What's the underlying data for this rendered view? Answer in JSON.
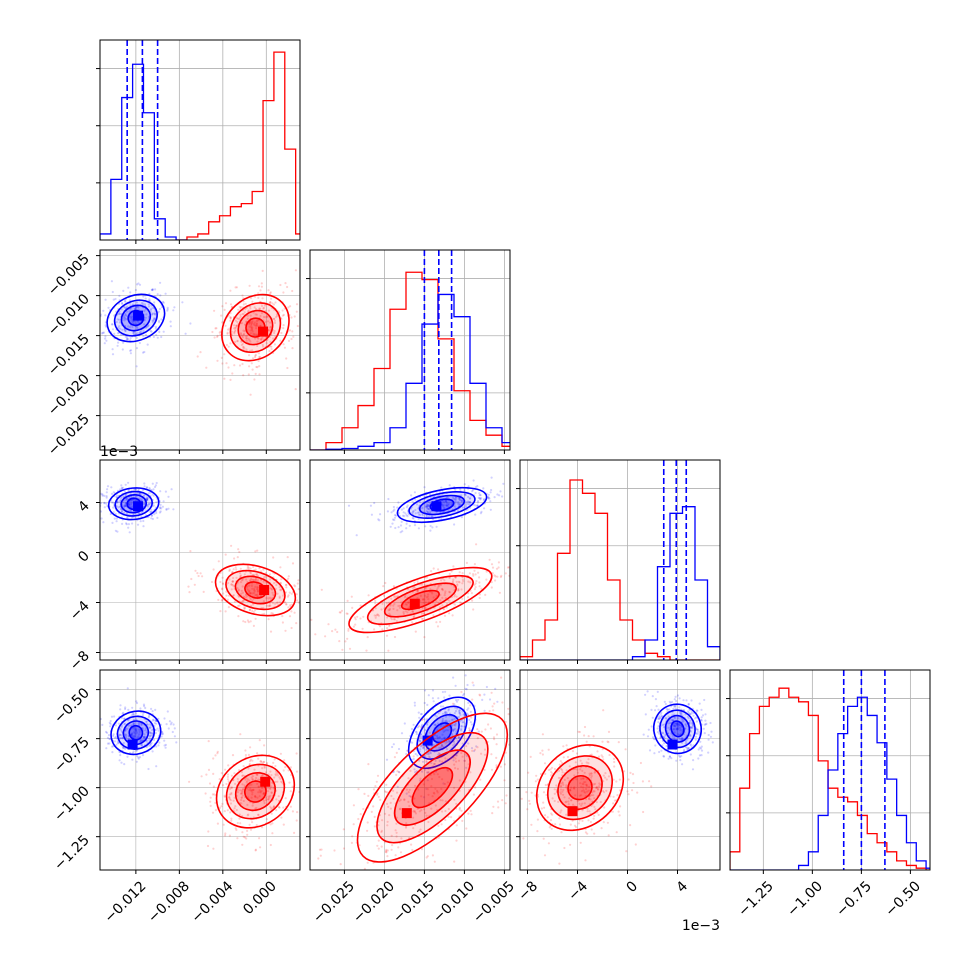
{
  "figure": {
    "type": "corner_plot",
    "description_colors": {
      "blue": "#0000ff",
      "red": "#ff0000",
      "grid": "#b0b0b0"
    }
  },
  "chart_data": {
    "type": "corner",
    "n_params": 4,
    "series": [
      {
        "color": "#0000ff",
        "quantile_lines": true
      },
      {
        "color": "#ff0000",
        "quantile_lines": false
      }
    ],
    "axes": [
      {
        "index": 0,
        "range": [
          -0.0153,
          0.0031
        ],
        "ticks": [
          -0.012,
          -0.008,
          -0.004,
          0.0
        ],
        "tick_labels": [
          "−0.012",
          "−0.008",
          "−0.004",
          "0.000"
        ],
        "offset_label": ""
      },
      {
        "index": 1,
        "range": [
          -0.0293,
          -0.0043
        ],
        "ticks": [
          -0.025,
          -0.02,
          -0.015,
          -0.01,
          -0.005
        ],
        "tick_labels": [
          "−0.025",
          "−0.020",
          "−0.015",
          "−0.010",
          "−0.005"
        ],
        "offset_label": ""
      },
      {
        "index": 2,
        "range": [
          -8.6,
          7.4
        ],
        "ticks": [
          -8,
          -4,
          0,
          4
        ],
        "tick_labels": [
          "−8",
          "−4",
          "0",
          "4"
        ],
        "offset_label": "1e−3"
      },
      {
        "index": 3,
        "range": [
          -1.42,
          -0.4
        ],
        "ticks": [
          -1.25,
          -1.0,
          -0.75,
          -0.5
        ],
        "tick_labels": [
          "−1.25",
          "−1.00",
          "−0.75",
          "−0.50"
        ],
        "offset_label": ""
      }
    ],
    "histograms": [
      {
        "param": 0,
        "blue": {
          "x": [
            -0.0153,
            -0.0143,
            -0.0133,
            -0.0123,
            -0.0113,
            -0.0103,
            -0.0093,
            -0.0083
          ],
          "y": [
            0.1,
            1.0,
            2.35,
            2.9,
            2.1,
            0.35,
            0.05,
            0.0
          ]
        },
        "red": {
          "x": [
            -0.0083,
            -0.0073,
            -0.0063,
            -0.0053,
            -0.0043,
            -0.0033,
            -0.0023,
            -0.0013,
            -0.0003,
            0.0007,
            0.0017,
            0.0027
          ],
          "y": [
            0.0,
            0.05,
            0.1,
            0.3,
            0.4,
            0.55,
            0.6,
            0.8,
            2.3,
            3.1,
            1.5,
            0.1
          ]
        },
        "blue_quantiles": [
          -0.0128,
          -0.0114,
          -0.01
        ],
        "ymax": 3.3
      },
      {
        "param": 1,
        "blue": {
          "x": [
            -0.0293,
            -0.0273,
            -0.0253,
            -0.0233,
            -0.0213,
            -0.0193,
            -0.0173,
            -0.0153,
            -0.0133,
            -0.0113,
            -0.0093,
            -0.0073,
            -0.0053
          ],
          "y": [
            0.0,
            0.01,
            0.02,
            0.05,
            0.1,
            0.3,
            0.9,
            1.7,
            2.1,
            1.8,
            0.9,
            0.3,
            0.1
          ]
        },
        "red": {
          "x": [
            -0.0293,
            -0.0273,
            -0.0253,
            -0.0233,
            -0.0213,
            -0.0193,
            -0.0173,
            -0.0153,
            -0.0133,
            -0.0113,
            -0.0093,
            -0.0073,
            -0.0053
          ],
          "y": [
            0.0,
            0.1,
            0.3,
            0.6,
            1.1,
            1.9,
            2.4,
            2.3,
            1.5,
            0.8,
            0.4,
            0.2,
            0.05
          ]
        },
        "blue_quantiles": [
          -0.015,
          -0.0132,
          -0.0116
        ],
        "ymax": 2.7
      },
      {
        "param": 2,
        "blue": {
          "x": [
            -8.6,
            -7.6,
            -6.6,
            -5.6,
            -4.6,
            -3.6,
            -2.6,
            -1.6,
            -0.6,
            0.4,
            1.4,
            2.4,
            3.4,
            4.4,
            5.4,
            6.4
          ],
          "y": [
            0,
            0,
            0,
            0,
            0,
            0,
            0,
            0,
            0,
            0.05,
            0.3,
            1.4,
            2.2,
            2.3,
            1.2,
            0.2
          ]
        },
        "red": {
          "x": [
            -8.6,
            -7.6,
            -6.6,
            -5.6,
            -4.6,
            -3.6,
            -2.6,
            -1.6,
            -0.6,
            0.4,
            1.4,
            2.4,
            3.4,
            4.4,
            5.4,
            6.4
          ],
          "y": [
            0.05,
            0.3,
            0.6,
            1.6,
            2.7,
            2.5,
            2.2,
            1.2,
            0.6,
            0.3,
            0.1,
            0.05,
            0.0,
            0.0,
            0.0,
            0.0
          ]
        },
        "blue_quantiles": [
          2.9,
          3.9,
          4.7
        ],
        "ymax": 3.0
      },
      {
        "param": 3,
        "blue": {
          "x": [
            -1.42,
            -1.37,
            -1.32,
            -1.27,
            -1.22,
            -1.17,
            -1.12,
            -1.07,
            -1.02,
            -0.97,
            -0.92,
            -0.87,
            -0.82,
            -0.77,
            -0.72,
            -0.67,
            -0.62,
            -0.57,
            -0.52,
            -0.47,
            -0.42
          ],
          "y": [
            0,
            0,
            0,
            0,
            0,
            0,
            0,
            0.05,
            0.2,
            0.6,
            1.1,
            1.5,
            1.8,
            1.9,
            1.7,
            1.4,
            1.0,
            0.6,
            0.3,
            0.1,
            0.02
          ]
        },
        "red": {
          "x": [
            -1.42,
            -1.37,
            -1.32,
            -1.27,
            -1.22,
            -1.17,
            -1.12,
            -1.07,
            -1.02,
            -0.97,
            -0.92,
            -0.87,
            -0.82,
            -0.77,
            -0.72,
            -0.67,
            -0.62,
            -0.57,
            -0.52,
            -0.47,
            -0.42
          ],
          "y": [
            0.2,
            0.9,
            1.5,
            1.8,
            1.9,
            2.0,
            1.9,
            1.85,
            1.7,
            1.2,
            0.9,
            0.8,
            0.75,
            0.6,
            0.4,
            0.3,
            0.2,
            0.1,
            0.05,
            0.02,
            0.0
          ]
        },
        "blue_quantiles": [
          -0.84,
          -0.75,
          -0.63
        ],
        "ymax": 2.2
      }
    ],
    "blobs": [
      {
        "row": 1,
        "col": 0,
        "series": "blue",
        "center": [
          -0.012,
          -0.0128
        ],
        "sx": 0.0013,
        "sy": 0.0022,
        "rot": 0.4,
        "modes": [
          [
            -0.0118,
            -0.0125
          ]
        ]
      },
      {
        "row": 1,
        "col": 0,
        "series": "red",
        "center": [
          -0.001,
          -0.014
        ],
        "sx": 0.0016,
        "sy": 0.003,
        "rot": 0.75,
        "modes": [
          [
            -0.0003,
            -0.0145
          ]
        ]
      },
      {
        "row": 2,
        "col": 0,
        "series": "blue",
        "center": [
          -0.0122,
          3.9
        ],
        "sx": 0.0011,
        "sy": 0.95,
        "rot": 0.1,
        "modes": [
          [
            -0.0118,
            3.7
          ]
        ]
      },
      {
        "row": 2,
        "col": 0,
        "series": "red",
        "center": [
          -0.001,
          -3.0
        ],
        "sx": 0.0018,
        "sy": 1.5,
        "rot": -0.3,
        "modes": [
          [
            -0.0002,
            -3.0
          ]
        ]
      },
      {
        "row": 2,
        "col": 1,
        "series": "blue",
        "center": [
          -0.0128,
          3.8
        ],
        "sx": 0.0027,
        "sy": 0.9,
        "rot": 0.2,
        "modes": [
          [
            -0.0135,
            3.7
          ]
        ]
      },
      {
        "row": 2,
        "col": 1,
        "series": "red",
        "center": [
          -0.0155,
          -3.8
        ],
        "sx": 0.0045,
        "sy": 1.3,
        "rot": 0.35,
        "modes": [
          [
            -0.0162,
            -4.1
          ]
        ]
      },
      {
        "row": 3,
        "col": 0,
        "series": "blue",
        "center": [
          -0.012,
          -0.72
        ],
        "sx": 0.0011,
        "sy": 0.085,
        "rot": 0.3,
        "modes": [
          [
            -0.0123,
            -0.78
          ]
        ]
      },
      {
        "row": 3,
        "col": 0,
        "series": "red",
        "center": [
          -0.001,
          -1.02
        ],
        "sx": 0.0018,
        "sy": 0.14,
        "rot": 0.6,
        "modes": [
          [
            -0.0001,
            -0.97
          ]
        ]
      },
      {
        "row": 3,
        "col": 1,
        "series": "blue",
        "center": [
          -0.0128,
          -0.72
        ],
        "sx": 0.0025,
        "sy": 0.1,
        "rot": 0.85,
        "modes": [
          [
            -0.0146,
            -0.76
          ]
        ]
      },
      {
        "row": 3,
        "col": 1,
        "series": "red",
        "center": [
          -0.014,
          -1.0
        ],
        "sx": 0.0058,
        "sy": 0.17,
        "rot": 0.78,
        "modes": [
          [
            -0.0172,
            -1.13
          ]
        ]
      },
      {
        "row": 3,
        "col": 2,
        "series": "blue",
        "center": [
          4.0,
          -0.7
        ],
        "sx": 0.9,
        "sy": 0.1,
        "rot": 0.3,
        "modes": [
          [
            3.6,
            -0.78
          ]
        ]
      },
      {
        "row": 3,
        "col": 2,
        "series": "red",
        "center": [
          -3.8,
          -1.0
        ],
        "sx": 1.8,
        "sy": 0.16,
        "rot": 0.75,
        "modes": [
          [
            -4.4,
            -1.12
          ]
        ]
      }
    ]
  }
}
